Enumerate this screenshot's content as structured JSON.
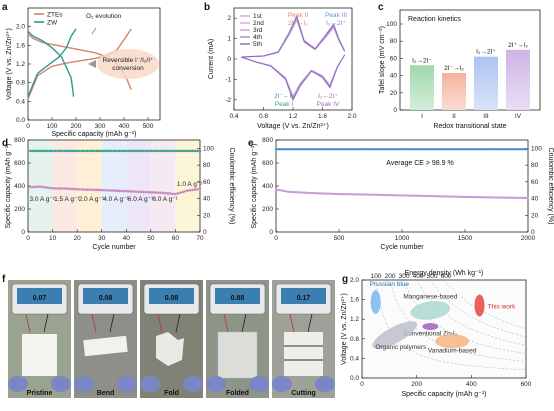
{
  "panels": {
    "a": {
      "label": "a",
      "xlabel": "Specific capacity (mAh g⁻¹)",
      "ylabel": "Voltage (V vs. Zn/Zn²⁺)",
      "xticks": [
        "0",
        "100",
        "200",
        "300",
        "400",
        "500"
      ],
      "yticks": [
        "0.0",
        "0.4",
        "0.8",
        "1.2",
        "1.6",
        "2.0"
      ],
      "legend": [
        "ZTEs",
        "ZW"
      ],
      "annotation_o2": "O₂ evolution",
      "annotation_box": "Reversible I⁻/I₂/I⁺ conversion",
      "colors": {
        "ztes": "#d9826b",
        "zw": "#2a9c8a"
      }
    },
    "b": {
      "label": "b",
      "xlabel": "Voltage (V vs. Zn/Zn²⁺)",
      "ylabel": "Current (mA)",
      "xticks": [
        "0.4",
        "0.8",
        "1.2",
        "1.6",
        "2.0"
      ],
      "yticks": [
        "-2",
        "-1",
        "0",
        "1",
        "2"
      ],
      "legend": [
        "1st",
        "2nd",
        "3rd",
        "4th",
        "5th"
      ],
      "peak2": "Peak II",
      "peak2_rxn": "2I⁻→I₂",
      "peak3": "Peak III",
      "peak3_rxn": "I₂→2I⁺",
      "peak1_rxn": "2I⁻←I₂",
      "peak1": "Peak I",
      "peak4_rxn": "I₂←2I⁺",
      "peak4": "Peak IV"
    },
    "c": {
      "label": "c",
      "title": "Reaction kinetics",
      "ylabel": "Tafel slope (mV cm⁻²)",
      "xlabel": "Redox transitional state",
      "yticks": [
        "0",
        "20",
        "40",
        "60",
        "80",
        "100"
      ],
      "ylim": [
        0,
        100
      ],
      "bars": [
        {
          "cat": "I",
          "value": 52,
          "label": "I₂→2I⁻",
          "color": "#8fd19e"
        },
        {
          "cat": "II",
          "value": 43,
          "label": "2I⁻→I₂",
          "color": "#f2a48c"
        },
        {
          "cat": "III",
          "value": 62,
          "label": "I₂→2I⁺",
          "color": "#9db8f0"
        },
        {
          "cat": "IV",
          "value": 70,
          "label": "2I⁺→I₂",
          "color": "#c6a8e0"
        }
      ]
    },
    "d": {
      "label": "d",
      "xlabel": "Cycle number",
      "ylabel_left": "Specific capacity (mAh g⁻¹)",
      "ylabel_right": "Coulombic efficiency (%)",
      "xticks": [
        "0",
        "10",
        "20",
        "30",
        "40",
        "50",
        "60",
        "70"
      ],
      "yticks_left": [
        "0",
        "200",
        "400",
        "600",
        "800"
      ],
      "yticks_right": [
        "0",
        "20",
        "40",
        "60",
        "80",
        "100"
      ],
      "rates": [
        "3.0 A g⁻¹",
        "1.5 A g⁻¹",
        "2.0 A g⁻¹",
        "4.0 A g⁻¹",
        "6.0 A g⁻¹",
        "8.0 A g⁻¹",
        "1.0 A g⁻¹"
      ],
      "band_colors": [
        "#e5f3ec",
        "#fbe9e4",
        "#fdf0d6",
        "#e6eefb",
        "#ece6f7",
        "#f6eaf2",
        "#fdf5d8"
      ]
    },
    "e": {
      "label": "e",
      "xlabel": "Cycle number",
      "ylabel_left": "Specific capacity (mAh g⁻¹)",
      "ylabel_right": "Coulombic efficiency (%)",
      "xticks": [
        "0",
        "500",
        "1000",
        "1500",
        "2000"
      ],
      "yticks_left": [
        "0",
        "200",
        "400",
        "600",
        "800"
      ],
      "yticks_right": [
        "0",
        "20",
        "40",
        "60",
        "80",
        "100"
      ],
      "note": "Average CE > 98.9 %"
    },
    "f": {
      "label": "f",
      "captions": [
        "Pristine",
        "Bend",
        "Fold",
        "Folded",
        "Cutting"
      ],
      "readings": [
        "0.07",
        "0.08",
        "0.08",
        "0.88",
        "0.17"
      ]
    },
    "g": {
      "label": "g",
      "top_axis": "Energy density (Wh kg⁻¹)",
      "top_ticks": [
        "100",
        "200",
        "300",
        "400",
        "500",
        "600"
      ],
      "xlabel": "Specific capacity (mAh g⁻¹)",
      "ylabel": "Voltage (V vs. Zn/Zn²⁺)",
      "xticks": [
        "0",
        "200",
        "400",
        "600"
      ],
      "yticks": [
        "0.0",
        "0.4",
        "0.8",
        "1.2",
        "1.6",
        "2.0"
      ],
      "labels": {
        "prussian": "Prussian blue",
        "manganese": "Manganese-based",
        "this_work": "This work",
        "conventional": "Conventional Zn-I₂",
        "organic": "Organic polymers",
        "vanadium": "Vanadium-based"
      }
    }
  },
  "chart_data": [
    {
      "type": "line",
      "panel": "a",
      "xlabel": "Specific capacity (mAh g⁻¹)",
      "ylabel": "Voltage (V vs. Zn/Zn²⁺)",
      "xlim": [
        0,
        550
      ],
      "ylim": [
        0,
        2.4
      ],
      "series": [
        {
          "name": "ZTEs",
          "x": [
            0,
            20,
            60,
            120,
            200,
            280,
            340,
            380,
            410,
            430
          ],
          "y": [
            1.85,
            1.75,
            1.66,
            1.6,
            1.52,
            1.44,
            1.33,
            1.15,
            0.9,
            0.65
          ]
        },
        {
          "name": "ZTEs",
          "x": [
            0,
            40,
            100,
            160,
            220,
            280,
            330,
            370,
            400,
            430
          ],
          "y": [
            0.45,
            0.95,
            1.15,
            1.22,
            1.27,
            1.32,
            1.38,
            1.5,
            1.72,
            1.95
          ]
        },
        {
          "name": "ZW",
          "x": [
            0,
            20,
            60,
            100,
            140,
            180,
            190
          ],
          "y": [
            1.9,
            1.8,
            1.7,
            1.55,
            1.35,
            0.9,
            0.5
          ]
        },
        {
          "name": "ZW",
          "x": [
            0,
            40,
            90,
            130,
            160,
            180,
            200
          ],
          "y": [
            0.5,
            1.0,
            1.2,
            1.35,
            1.55,
            1.8,
            1.95
          ]
        }
      ]
    },
    {
      "type": "line",
      "panel": "b",
      "xlabel": "Voltage (V vs. Zn/Zn²⁺)",
      "ylabel": "Current (mA)",
      "xlim": [
        0.4,
        2.0
      ],
      "ylim": [
        -2.5,
        2.5
      ],
      "series": [
        {
          "name": "5th",
          "x": [
            0.5,
            0.8,
            1.0,
            1.15,
            1.25,
            1.35,
            1.5,
            1.65,
            1.75,
            1.82,
            1.9
          ],
          "y": [
            0.1,
            0.15,
            0.35,
            1.3,
            2.1,
            0.9,
            0.5,
            1.2,
            1.7,
            1.0,
            0.4
          ]
        },
        {
          "name": "5th",
          "x": [
            1.9,
            1.8,
            1.7,
            1.6,
            1.45,
            1.3,
            1.2,
            1.1,
            0.9,
            0.7,
            0.5
          ],
          "y": [
            0.2,
            -0.4,
            -1.4,
            -0.9,
            -0.6,
            -1.3,
            -2.0,
            -1.0,
            -0.35,
            -0.15,
            0.1
          ]
        }
      ]
    },
    {
      "type": "bar",
      "panel": "c",
      "categories": [
        "I",
        "II",
        "III",
        "IV"
      ],
      "values": [
        52,
        43,
        62,
        70
      ],
      "title": "Reaction kinetics",
      "xlabel": "Redox transitional state",
      "ylabel": "Tafel slope (mV cm⁻²)",
      "ylim": [
        0,
        100
      ]
    },
    {
      "type": "scatter",
      "panel": "d",
      "xlabel": "Cycle number",
      "xlim": [
        0,
        70
      ],
      "series": [
        {
          "name": "Specific capacity",
          "x": [
            0,
            5,
            10,
            15,
            20,
            25,
            30,
            35,
            40,
            45,
            50,
            55,
            60,
            65,
            70
          ],
          "y": [
            390,
            395,
            380,
            378,
            372,
            368,
            365,
            360,
            355,
            350,
            345,
            340,
            330,
            360,
            375
          ]
        },
        {
          "name": "Coulombic efficiency",
          "x": [
            0,
            10,
            20,
            30,
            40,
            50,
            60,
            70
          ],
          "y": [
            96,
            97,
            97,
            97,
            97,
            97,
            97,
            96
          ]
        }
      ]
    },
    {
      "type": "scatter",
      "panel": "e",
      "xlabel": "Cycle number",
      "xlim": [
        0,
        2000
      ],
      "series": [
        {
          "name": "Specific capacity",
          "x": [
            0,
            100,
            250,
            500,
            750,
            1000,
            1250,
            1500,
            1750,
            2000
          ],
          "y": [
            370,
            350,
            340,
            330,
            325,
            318,
            312,
            305,
            300,
            296
          ]
        },
        {
          "name": "Coulombic efficiency",
          "x": [
            0,
            500,
            1000,
            1500,
            2000
          ],
          "y": [
            99,
            99,
            99,
            99,
            99
          ]
        }
      ]
    },
    {
      "type": "scatter",
      "panel": "g",
      "xlabel": "Specific capacity (mAh g⁻¹)",
      "ylabel": "Voltage (V vs. Zn/Zn²⁺)",
      "xlim": [
        0,
        600
      ],
      "ylim": [
        0,
        2.0
      ],
      "series": [
        {
          "name": "Prussian blue",
          "x": [
            50
          ],
          "y": [
            1.55
          ]
        },
        {
          "name": "Manganese-based",
          "x": [
            250
          ],
          "y": [
            1.38
          ]
        },
        {
          "name": "This work",
          "x": [
            430
          ],
          "y": [
            1.48
          ]
        },
        {
          "name": "Conventional Zn-I₂",
          "x": [
            250
          ],
          "y": [
            1.05
          ]
        },
        {
          "name": "Organic polymers",
          "x": [
            120
          ],
          "y": [
            0.88
          ]
        },
        {
          "name": "Vanadium-based",
          "x": [
            330
          ],
          "y": [
            0.75
          ]
        }
      ]
    }
  ]
}
